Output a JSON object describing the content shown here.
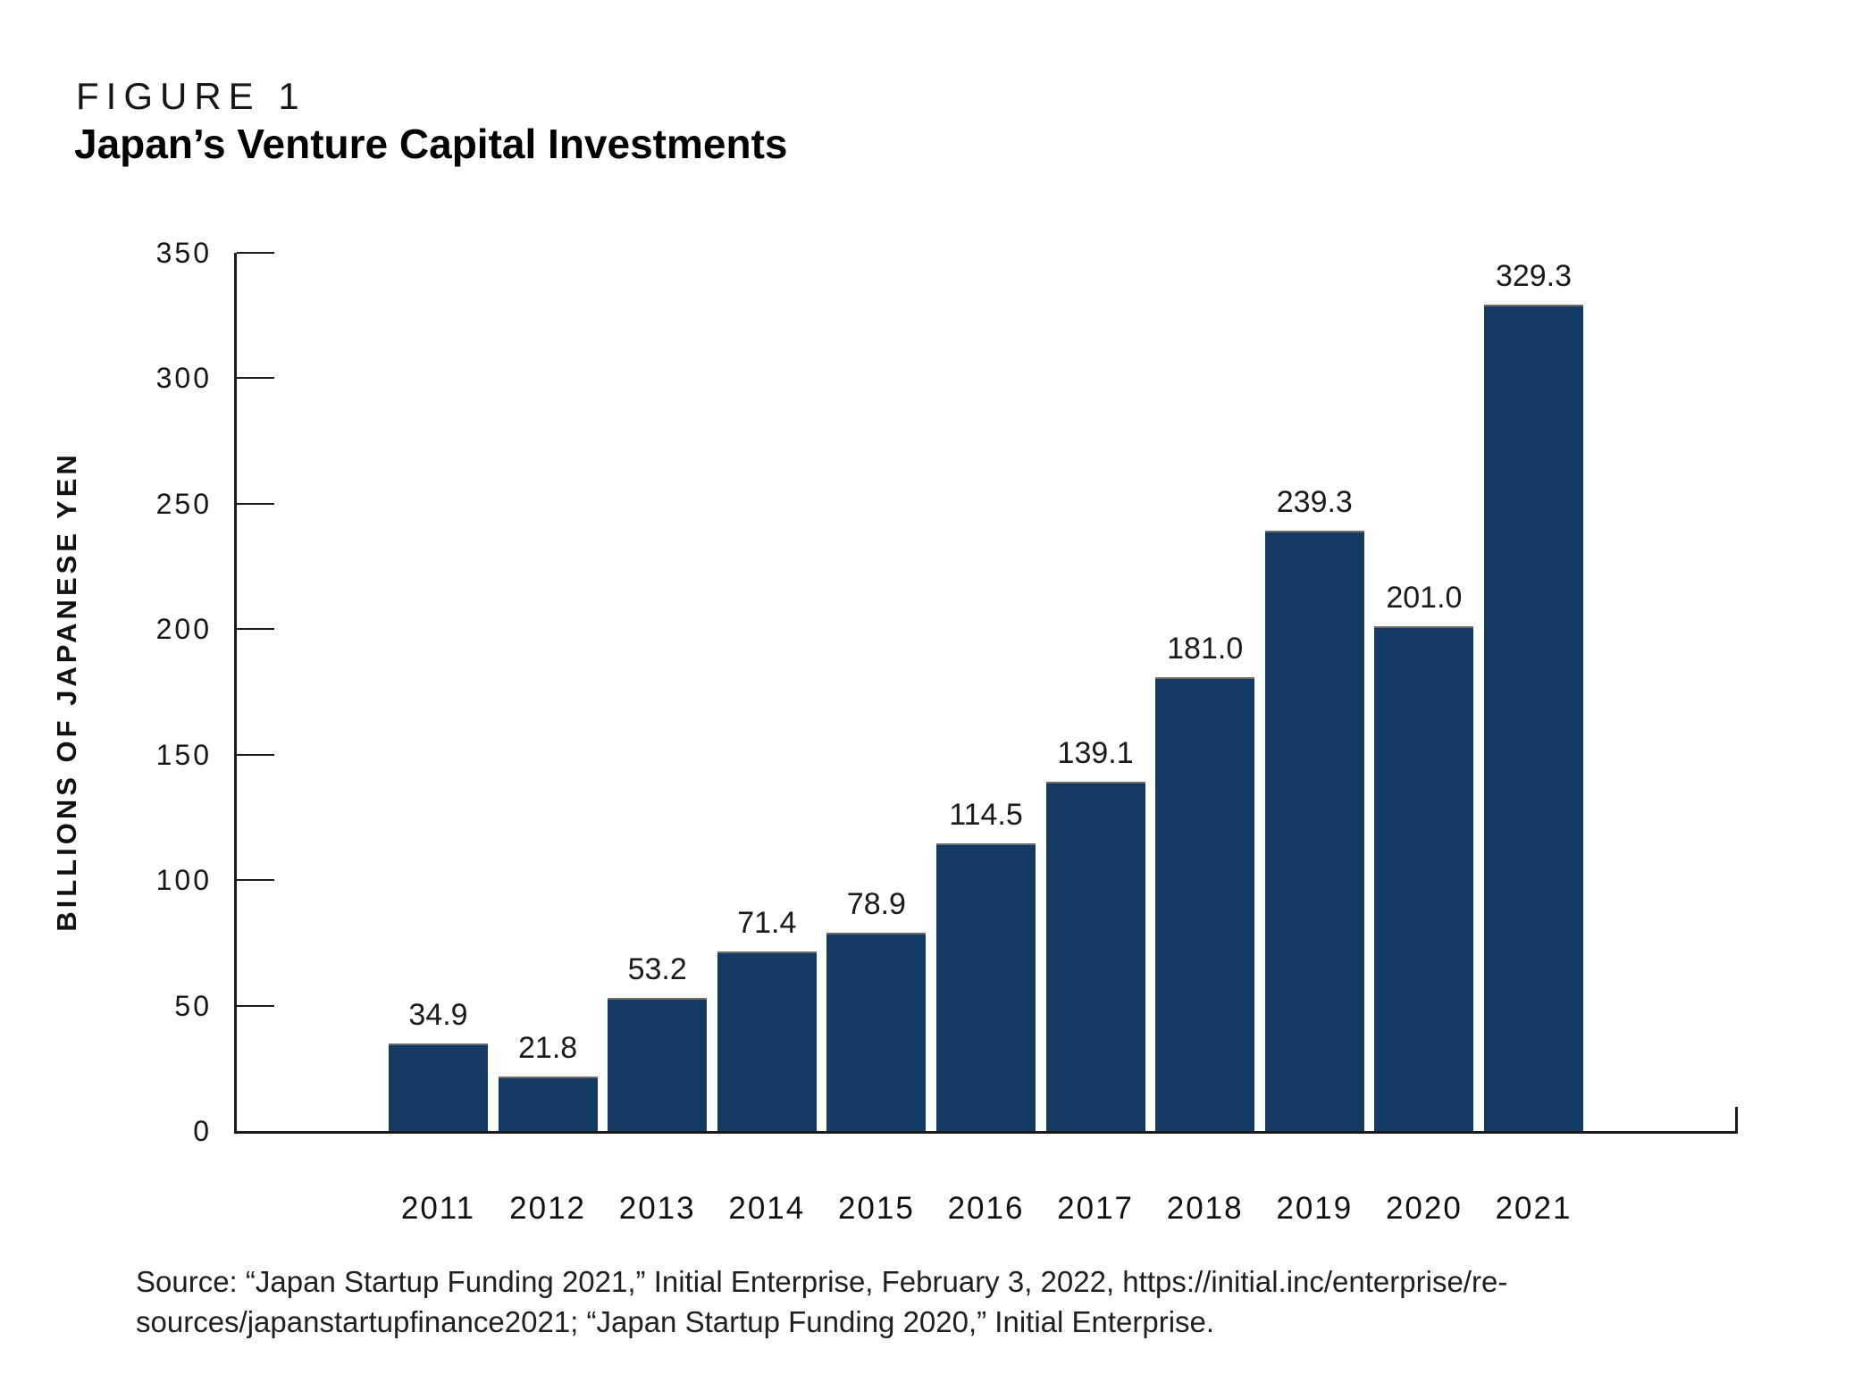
{
  "figure": {
    "label": "FIGURE 1",
    "title": "Japan’s Venture Capital Investments"
  },
  "chart_data": {
    "type": "bar",
    "categories": [
      "2011",
      "2012",
      "2013",
      "2014",
      "2015",
      "2016",
      "2017",
      "2018",
      "2019",
      "2020",
      "2021"
    ],
    "values": [
      34.9,
      21.8,
      53.2,
      71.4,
      78.9,
      114.5,
      139.1,
      181.0,
      239.3,
      201.0,
      329.3
    ],
    "value_labels": [
      "34.9",
      "21.8",
      "53.2",
      "71.4",
      "78.9",
      "114.5",
      "139.1",
      "181.0",
      "239.3",
      "201.0",
      "329.3"
    ],
    "title": "Japan’s Venture Capital Investments",
    "xlabel": "",
    "ylabel": "BILLIONS OF JAPANESE YEN",
    "ylim": [
      0,
      350
    ],
    "yticks": [
      0,
      50,
      100,
      150,
      200,
      250,
      300,
      350
    ],
    "grid": false,
    "legend": false,
    "bar_color": "#123A63",
    "axis_color": "#1a1a1a"
  },
  "source": {
    "lines": [
      "Source: “Japan Startup Funding 2021,” Initial Enterprise, February 3, 2022, https://initial.inc/enterprise/re-",
      "sources/japanstartupfinance2021; “Japan Startup Funding 2020,” Initial Enterprise."
    ]
  }
}
